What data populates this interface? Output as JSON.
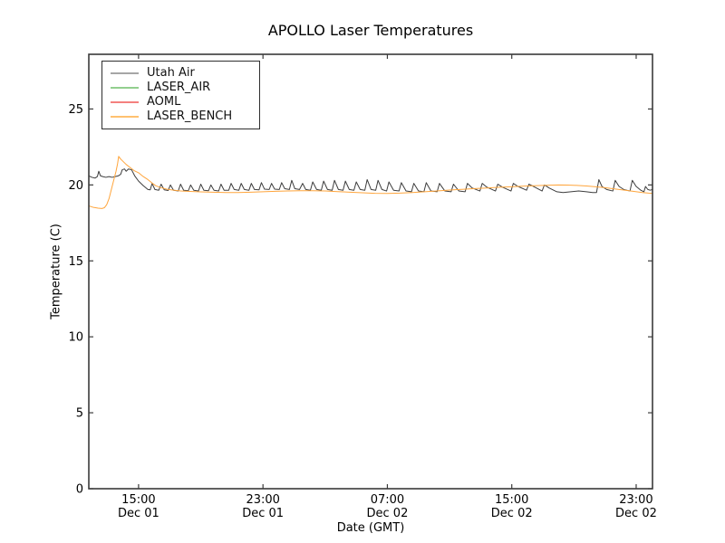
{
  "chart_data": {
    "type": "line",
    "title": "APOLLO Laser Temperatures",
    "xlabel": "Date (GMT)",
    "ylabel": "Temperature (C)",
    "x_unit": "hours since Dec 01 00:00 GMT",
    "xlim": [
      11.8,
      48.05
    ],
    "ylim": [
      0,
      28.6
    ],
    "grid": false,
    "legend_position": "upper left",
    "x_ticks": [
      {
        "value": 15,
        "time": "15:00",
        "date": "Dec 01"
      },
      {
        "value": 23,
        "time": "23:00",
        "date": "Dec 01"
      },
      {
        "value": 31,
        "time": "07:00",
        "date": "Dec 02"
      },
      {
        "value": 39,
        "time": "15:00",
        "date": "Dec 02"
      },
      {
        "value": 47,
        "time": "23:00",
        "date": "Dec 02"
      }
    ],
    "y_ticks": [
      0,
      5,
      10,
      15,
      20,
      25
    ],
    "series": [
      {
        "name": "Utah Air",
        "color": "#3d3d3d",
        "legend_color": "#a6a6a6",
        "points": [
          [
            11.8,
            20.6
          ],
          [
            12.0,
            20.5
          ],
          [
            12.2,
            20.45
          ],
          [
            12.35,
            20.55
          ],
          [
            12.44,
            20.9
          ],
          [
            12.55,
            20.6
          ],
          [
            12.7,
            20.55
          ],
          [
            12.9,
            20.5
          ],
          [
            13.1,
            20.55
          ],
          [
            13.3,
            20.5
          ],
          [
            13.5,
            20.55
          ],
          [
            13.7,
            20.6
          ],
          [
            13.85,
            20.7
          ],
          [
            13.95,
            21.0
          ],
          [
            14.1,
            21.05
          ],
          [
            14.2,
            20.9
          ],
          [
            14.35,
            21.05
          ],
          [
            14.55,
            21.0
          ],
          [
            14.75,
            20.6
          ],
          [
            15.0,
            20.25
          ],
          [
            15.3,
            19.95
          ],
          [
            15.6,
            19.7
          ],
          [
            15.75,
            19.68
          ],
          [
            15.87,
            20.1
          ],
          [
            16.05,
            19.7
          ],
          [
            16.3,
            19.65
          ],
          [
            16.45,
            20.05
          ],
          [
            16.65,
            19.68
          ],
          [
            16.9,
            19.63
          ],
          [
            17.05,
            20.0
          ],
          [
            17.25,
            19.65
          ],
          [
            17.55,
            19.6
          ],
          [
            17.7,
            20.05
          ],
          [
            17.9,
            19.65
          ],
          [
            18.2,
            19.62
          ],
          [
            18.35,
            20.0
          ],
          [
            18.55,
            19.65
          ],
          [
            18.85,
            19.6
          ],
          [
            19.0,
            20.05
          ],
          [
            19.2,
            19.65
          ],
          [
            19.5,
            19.62
          ],
          [
            19.65,
            20.0
          ],
          [
            19.85,
            19.65
          ],
          [
            20.15,
            19.6
          ],
          [
            20.3,
            20.05
          ],
          [
            20.5,
            19.65
          ],
          [
            20.8,
            19.65
          ],
          [
            20.95,
            20.1
          ],
          [
            21.15,
            19.7
          ],
          [
            21.45,
            19.65
          ],
          [
            21.6,
            20.1
          ],
          [
            21.8,
            19.7
          ],
          [
            22.1,
            19.65
          ],
          [
            22.25,
            20.1
          ],
          [
            22.45,
            19.7
          ],
          [
            22.75,
            19.68
          ],
          [
            22.9,
            20.15
          ],
          [
            23.1,
            19.72
          ],
          [
            23.4,
            19.7
          ],
          [
            23.55,
            20.1
          ],
          [
            23.75,
            19.72
          ],
          [
            24.05,
            19.7
          ],
          [
            24.2,
            20.15
          ],
          [
            24.4,
            19.75
          ],
          [
            24.7,
            19.7
          ],
          [
            24.85,
            20.3
          ],
          [
            25.05,
            19.75
          ],
          [
            25.35,
            19.7
          ],
          [
            25.55,
            20.1
          ],
          [
            25.75,
            19.7
          ],
          [
            26.05,
            19.65
          ],
          [
            26.2,
            20.2
          ],
          [
            26.45,
            19.7
          ],
          [
            26.75,
            19.65
          ],
          [
            26.9,
            20.25
          ],
          [
            27.15,
            19.7
          ],
          [
            27.45,
            19.65
          ],
          [
            27.6,
            20.3
          ],
          [
            27.85,
            19.7
          ],
          [
            28.15,
            19.65
          ],
          [
            28.3,
            20.25
          ],
          [
            28.55,
            19.7
          ],
          [
            28.85,
            19.65
          ],
          [
            29.0,
            20.2
          ],
          [
            29.25,
            19.7
          ],
          [
            29.55,
            19.65
          ],
          [
            29.7,
            20.35
          ],
          [
            29.95,
            19.7
          ],
          [
            30.25,
            19.65
          ],
          [
            30.4,
            20.3
          ],
          [
            30.65,
            19.7
          ],
          [
            30.95,
            19.6
          ],
          [
            31.1,
            20.2
          ],
          [
            31.4,
            19.65
          ],
          [
            31.75,
            19.6
          ],
          [
            31.9,
            20.15
          ],
          [
            32.2,
            19.6
          ],
          [
            32.55,
            19.55
          ],
          [
            32.7,
            20.1
          ],
          [
            33.0,
            19.6
          ],
          [
            33.35,
            19.55
          ],
          [
            33.5,
            20.15
          ],
          [
            33.8,
            19.6
          ],
          [
            34.2,
            19.55
          ],
          [
            34.35,
            20.1
          ],
          [
            34.7,
            19.6
          ],
          [
            35.1,
            19.55
          ],
          [
            35.25,
            20.05
          ],
          [
            35.6,
            19.6
          ],
          [
            36.0,
            19.55
          ],
          [
            36.15,
            20.1
          ],
          [
            36.45,
            19.8
          ],
          [
            36.95,
            19.6
          ],
          [
            37.1,
            20.1
          ],
          [
            37.4,
            19.85
          ],
          [
            37.95,
            19.6
          ],
          [
            38.1,
            20.05
          ],
          [
            38.4,
            19.85
          ],
          [
            38.95,
            19.6
          ],
          [
            39.1,
            20.1
          ],
          [
            39.4,
            19.9
          ],
          [
            39.95,
            19.65
          ],
          [
            40.1,
            20.05
          ],
          [
            40.4,
            19.9
          ],
          [
            40.95,
            19.6
          ],
          [
            41.1,
            20.0
          ],
          [
            41.4,
            19.8
          ],
          [
            41.9,
            19.55
          ],
          [
            42.3,
            19.5
          ],
          [
            42.8,
            19.55
          ],
          [
            43.3,
            19.6
          ],
          [
            43.8,
            19.55
          ],
          [
            44.2,
            19.5
          ],
          [
            44.45,
            19.5
          ],
          [
            44.6,
            20.35
          ],
          [
            44.8,
            19.9
          ],
          [
            45.1,
            19.7
          ],
          [
            45.5,
            19.6
          ],
          [
            45.65,
            20.3
          ],
          [
            45.9,
            19.9
          ],
          [
            46.2,
            19.7
          ],
          [
            46.6,
            19.6
          ],
          [
            46.75,
            20.3
          ],
          [
            47.0,
            19.9
          ],
          [
            47.3,
            19.65
          ],
          [
            47.5,
            19.55
          ],
          [
            47.6,
            19.9
          ],
          [
            47.75,
            19.7
          ],
          [
            47.9,
            19.65
          ],
          [
            48.05,
            19.7
          ]
        ]
      },
      {
        "name": "LASER_AIR",
        "color": "#92cf8e",
        "legend_color": "#92cf8e",
        "points": []
      },
      {
        "name": "AOML",
        "color": "#f4807e",
        "legend_color": "#f4807e",
        "points": []
      },
      {
        "name": "LASER_BENCH",
        "color": "#ffa53c",
        "legend_color": "#ffc170",
        "points": [
          [
            11.8,
            18.62
          ],
          [
            12.1,
            18.52
          ],
          [
            12.4,
            18.47
          ],
          [
            12.65,
            18.45
          ],
          [
            12.8,
            18.5
          ],
          [
            12.95,
            18.7
          ],
          [
            13.1,
            19.1
          ],
          [
            13.25,
            19.7
          ],
          [
            13.4,
            20.3
          ],
          [
            13.55,
            20.9
          ],
          [
            13.65,
            21.4
          ],
          [
            13.72,
            21.88
          ],
          [
            13.85,
            21.7
          ],
          [
            14.0,
            21.55
          ],
          [
            14.2,
            21.35
          ],
          [
            14.45,
            21.15
          ],
          [
            14.7,
            20.95
          ],
          [
            15.0,
            20.8
          ],
          [
            15.3,
            20.55
          ],
          [
            15.6,
            20.35
          ],
          [
            15.9,
            20.1
          ],
          [
            16.1,
            19.95
          ],
          [
            16.4,
            19.83
          ],
          [
            16.8,
            19.72
          ],
          [
            17.2,
            19.66
          ],
          [
            17.7,
            19.6
          ],
          [
            18.3,
            19.57
          ],
          [
            19.0,
            19.54
          ],
          [
            19.8,
            19.52
          ],
          [
            20.6,
            19.5
          ],
          [
            21.4,
            19.5
          ],
          [
            22.2,
            19.52
          ],
          [
            23.0,
            19.55
          ],
          [
            23.8,
            19.58
          ],
          [
            24.6,
            19.6
          ],
          [
            25.4,
            19.62
          ],
          [
            26.2,
            19.62
          ],
          [
            27.0,
            19.6
          ],
          [
            27.8,
            19.56
          ],
          [
            28.6,
            19.52
          ],
          [
            29.4,
            19.48
          ],
          [
            30.2,
            19.45
          ],
          [
            31.0,
            19.44
          ],
          [
            31.8,
            19.46
          ],
          [
            32.6,
            19.5
          ],
          [
            33.4,
            19.55
          ],
          [
            34.2,
            19.6
          ],
          [
            35.0,
            19.66
          ],
          [
            35.8,
            19.71
          ],
          [
            36.6,
            19.76
          ],
          [
            37.4,
            19.8
          ],
          [
            38.2,
            19.85
          ],
          [
            39.0,
            19.88
          ],
          [
            39.8,
            19.92
          ],
          [
            40.6,
            19.95
          ],
          [
            41.4,
            19.98
          ],
          [
            42.0,
            20.0
          ],
          [
            42.6,
            19.99
          ],
          [
            43.2,
            19.97
          ],
          [
            43.8,
            19.93
          ],
          [
            44.4,
            19.88
          ],
          [
            45.0,
            19.82
          ],
          [
            45.6,
            19.74
          ],
          [
            46.2,
            19.66
          ],
          [
            46.8,
            19.58
          ],
          [
            47.4,
            19.5
          ],
          [
            47.8,
            19.46
          ],
          [
            48.05,
            19.45
          ]
        ]
      }
    ]
  }
}
